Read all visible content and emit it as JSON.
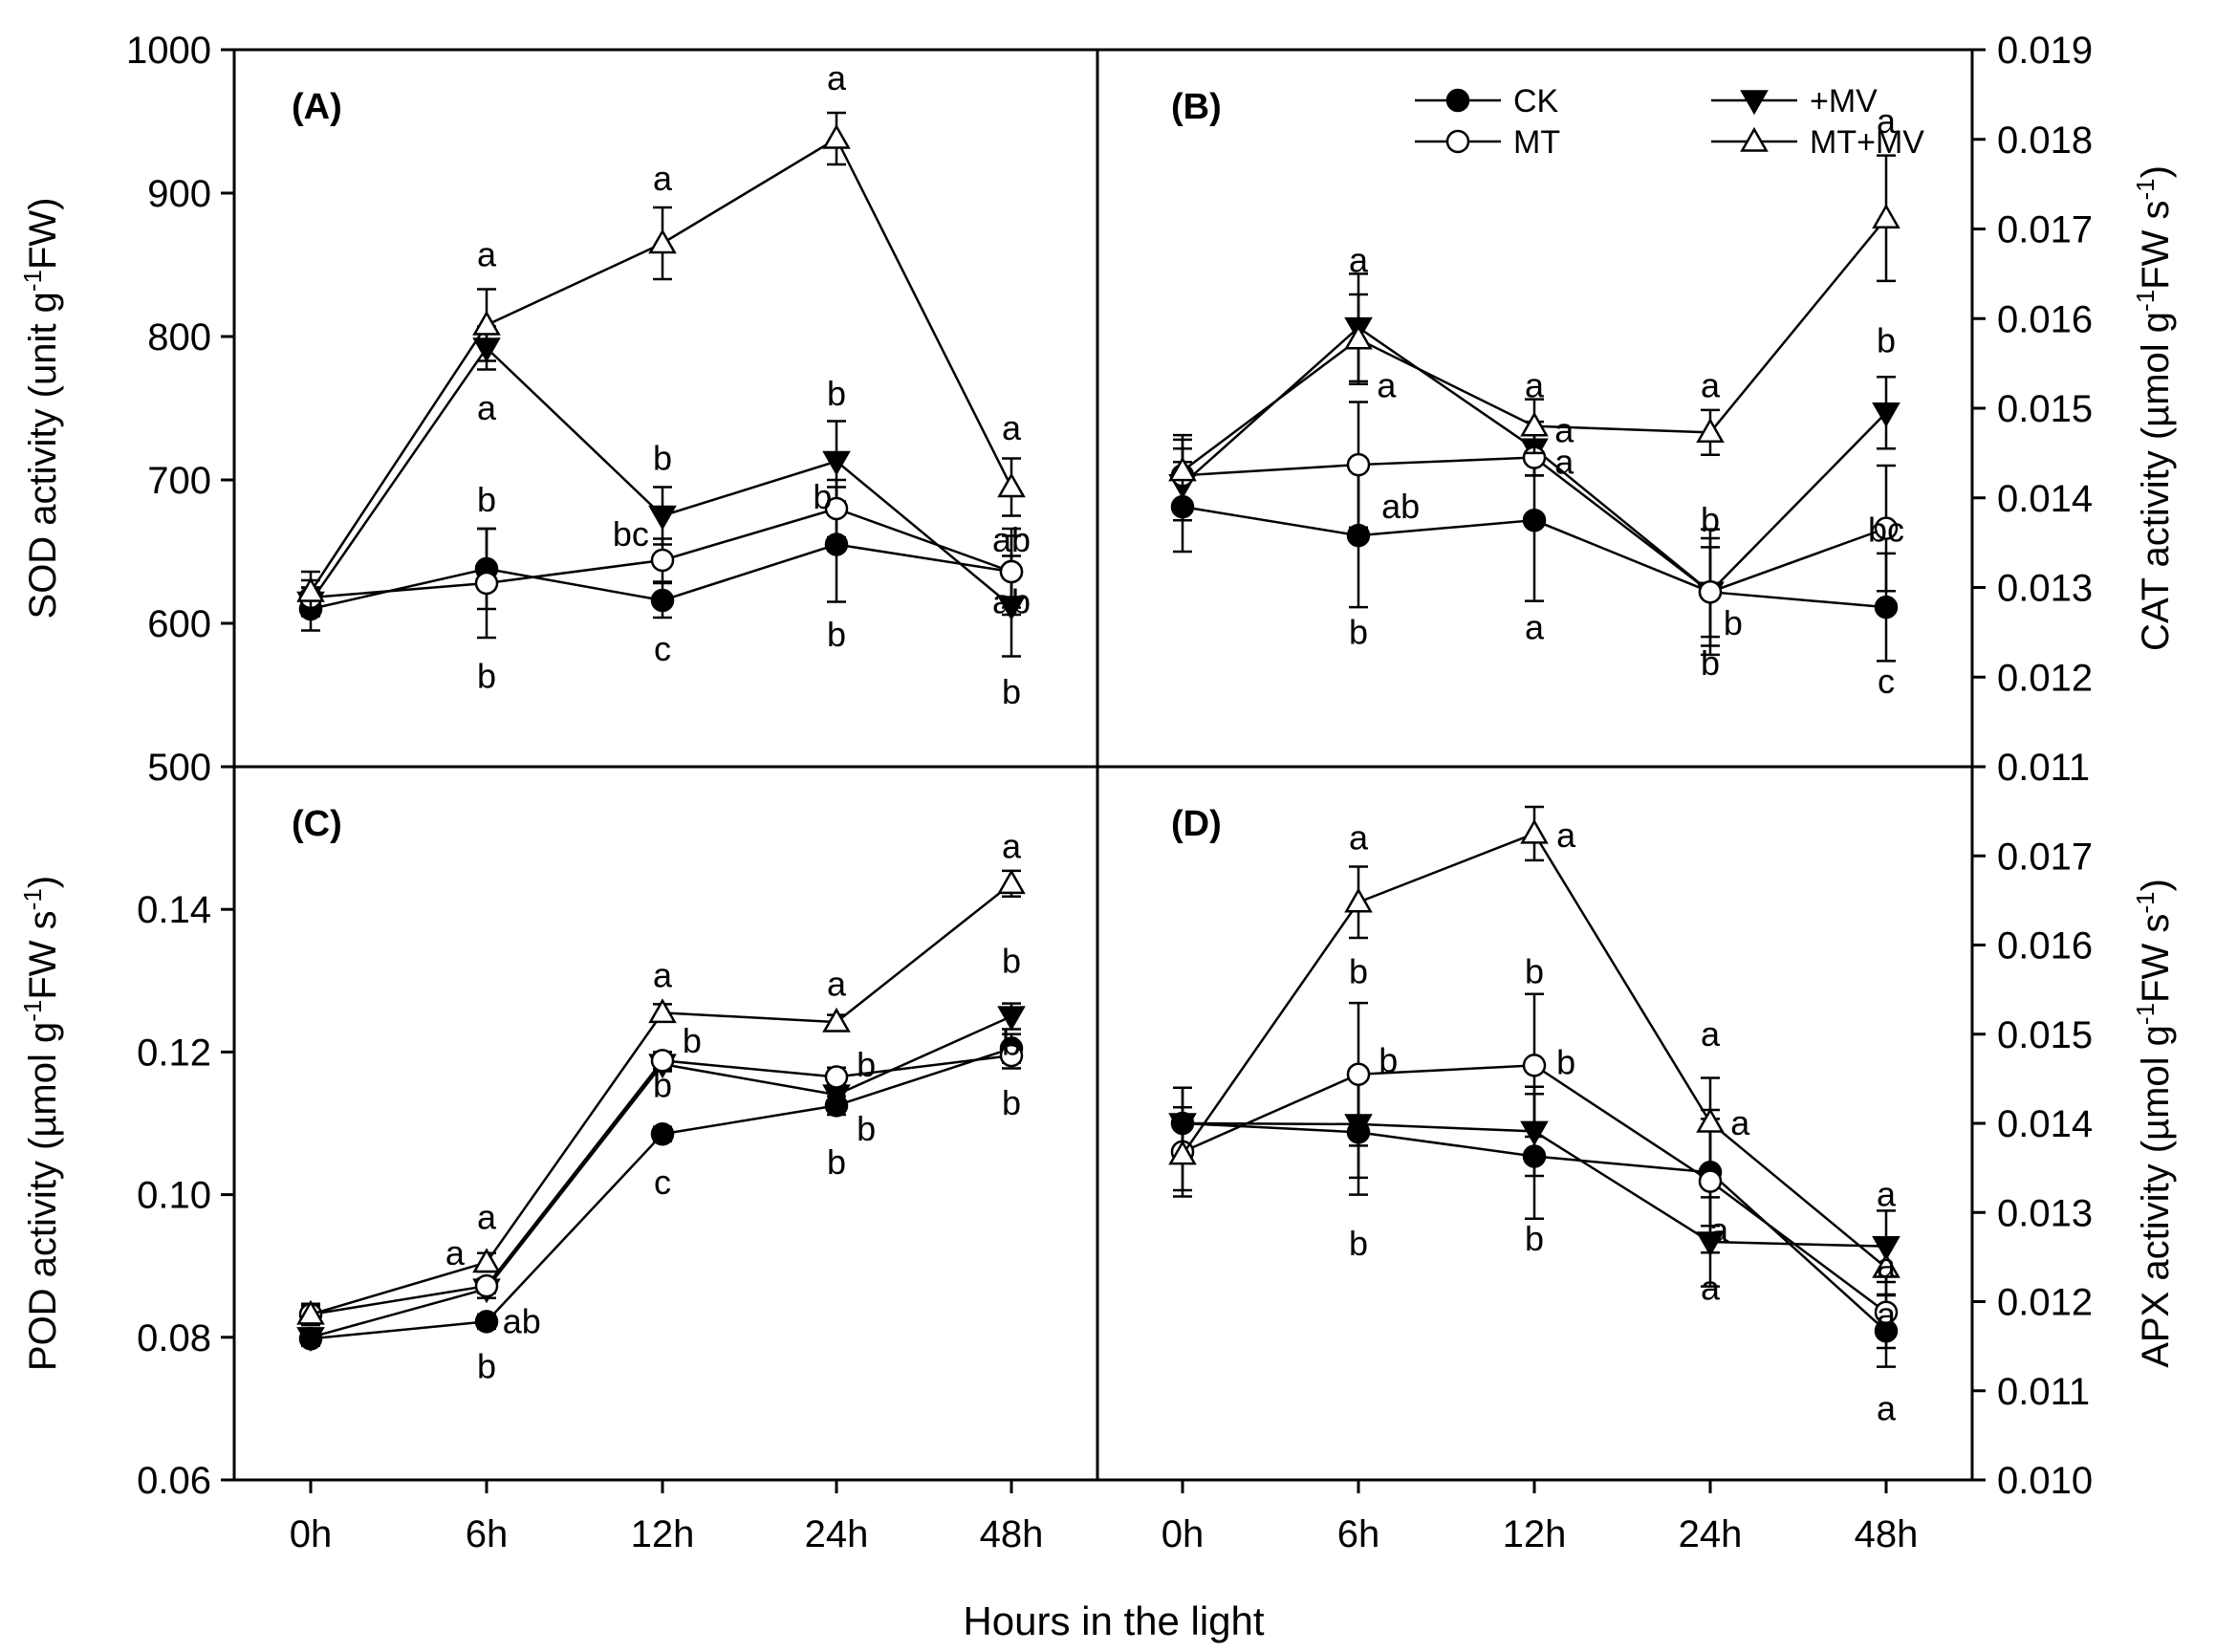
{
  "shared_x_label": "Hours in the light",
  "legend": {
    "entries": [
      {
        "name": "CK",
        "marker": "filled-circle"
      },
      {
        "name": "+MV",
        "marker": "filled-triangle-down"
      },
      {
        "name": "MT",
        "marker": "open-circle"
      },
      {
        "name": "MT+MV",
        "marker": "open-triangle-up"
      }
    ]
  },
  "chart_data": [
    {
      "panel": "(A)",
      "type": "line",
      "ylabel": "SOD activity (unit g-1FW)",
      "ylabel_base": "SOD activity (unit g",
      "ylabel_sup": "-1",
      "ylabel_tail": "FW)",
      "axis_side": "left",
      "categories": [
        "0h",
        "6h",
        "12h",
        "24h",
        "48h"
      ],
      "ylim": [
        500,
        1000
      ],
      "yticks": [
        "500",
        "600",
        "700",
        "800",
        "900",
        "1000"
      ],
      "ytick_values": [
        500,
        600,
        700,
        800,
        900,
        1000
      ],
      "series": [
        {
          "name": "CK",
          "values": [
            610,
            638,
            616,
            655,
            636
          ],
          "errors": [
            15,
            28,
            12,
            40,
            30
          ]
        },
        {
          "name": "+MV",
          "values": [
            615,
            792,
            675,
            713,
            612
          ],
          "errors": [
            10,
            15,
            20,
            28,
            35
          ]
        },
        {
          "name": "MT",
          "values": [
            618,
            628,
            644,
            680,
            636
          ],
          "errors": [
            12,
            38,
            15,
            20,
            25
          ]
        },
        {
          "name": "MT+MV",
          "values": [
            622,
            808,
            865,
            938,
            695
          ],
          "errors": [
            14,
            25,
            25,
            18,
            20
          ]
        }
      ],
      "annotations": [
        {
          "text": "a",
          "x": 1,
          "y": 857
        },
        {
          "text": "a",
          "x": 1,
          "y": 750
        },
        {
          "text": "b",
          "x": 1,
          "y": 686
        },
        {
          "text": "b",
          "x": 1,
          "y": 563
        },
        {
          "text": "a",
          "x": 2,
          "y": 910
        },
        {
          "text": "b",
          "x": 2,
          "y": 715
        },
        {
          "text": "bc",
          "x": 1.82,
          "y": 662
        },
        {
          "text": "c",
          "x": 2,
          "y": 582
        },
        {
          "text": "a",
          "x": 3,
          "y": 980
        },
        {
          "text": "b",
          "x": 3,
          "y": 760
        },
        {
          "text": "b",
          "x": 2.92,
          "y": 688
        },
        {
          "text": "b",
          "x": 3,
          "y": 592
        },
        {
          "text": "a",
          "x": 4,
          "y": 736
        },
        {
          "text": "ab",
          "x": 4.2,
          "y": 658
        },
        {
          "text": "ab",
          "x": 4.2,
          "y": 615
        },
        {
          "text": "b",
          "x": 4,
          "y": 552
        }
      ]
    },
    {
      "panel": "(B)",
      "type": "line",
      "ylabel": "CAT activity (µmol g-1FW s-1)",
      "ylabel_base": "CAT activity (µmol g",
      "ylabel_sup": "-1",
      "ylabel_mid": "FW s",
      "ylabel_sup2": "-1",
      "ylabel_tail": ")",
      "axis_side": "right",
      "categories": [
        "0h",
        "6h",
        "12h",
        "24h",
        "48h"
      ],
      "ylim": [
        0.011,
        0.019
      ],
      "yticks": [
        "0.011",
        "0.012",
        "0.013",
        "0.014",
        "0.015",
        "0.016",
        "0.017",
        "0.018",
        "0.019"
      ],
      "ytick_values": [
        0.011,
        0.012,
        0.013,
        0.014,
        0.015,
        0.016,
        0.017,
        0.018,
        0.019
      ],
      "series": [
        {
          "name": "CK",
          "values": [
            0.0139,
            0.01358,
            0.01375,
            0.01295,
            0.01278
          ],
          "errors": [
            0.0005,
            0.0008,
            0.0009,
            0.0005,
            0.0006
          ]
        },
        {
          "name": "+MV",
          "values": [
            0.01415,
            0.0159,
            0.01455,
            0.01295,
            0.01495
          ],
          "errors": [
            0.0004,
            0.0006,
            0.0003,
            0.0006,
            0.0004
          ]
        },
        {
          "name": "MT",
          "values": [
            0.01425,
            0.01437,
            0.01445,
            0.01295,
            0.01366
          ],
          "errors": [
            0.0004,
            0.0007,
            0.0002,
            0.0007,
            0.0007
          ]
        },
        {
          "name": "MT+MV",
          "values": [
            0.0143,
            0.01577,
            0.0148,
            0.01473,
            0.01712
          ],
          "errors": [
            0.0004,
            0.0005,
            0.0003,
            0.00025,
            0.0007
          ]
        }
      ],
      "annotations": [
        {
          "text": "a",
          "x": 6,
          "y": 0.01665
        },
        {
          "text": "a",
          "x": 6.16,
          "y": 0.01525
        },
        {
          "text": "ab",
          "x": 6.24,
          "y": 0.0139
        },
        {
          "text": "b",
          "x": 6,
          "y": 0.0125
        },
        {
          "text": "a",
          "x": 7,
          "y": 0.01525
        },
        {
          "text": "a",
          "x": 7.17,
          "y": 0.01475
        },
        {
          "text": "a",
          "x": 7.17,
          "y": 0.0144
        },
        {
          "text": "a",
          "x": 7,
          "y": 0.01255
        },
        {
          "text": "a",
          "x": 8,
          "y": 0.01525
        },
        {
          "text": "b",
          "x": 8,
          "y": 0.01375
        },
        {
          "text": "b",
          "x": 8.13,
          "y": 0.0126
        },
        {
          "text": "b",
          "x": 8,
          "y": 0.01215
        },
        {
          "text": "a",
          "x": 9,
          "y": 0.0182
        },
        {
          "text": "b",
          "x": 9,
          "y": 0.01575
        },
        {
          "text": "bc",
          "x": 9.23,
          "y": 0.01364
        },
        {
          "text": "c",
          "x": 9,
          "y": 0.01195
        }
      ]
    },
    {
      "panel": "(C)",
      "type": "line",
      "ylabel": "POD activity (µmol g-1FW s-1)",
      "ylabel_base": "POD activity (µmol g",
      "ylabel_sup": "-1",
      "ylabel_mid": "FW s",
      "ylabel_sup2": "-1",
      "ylabel_tail": ")",
      "axis_side": "left",
      "categories": [
        "0h",
        "6h",
        "12h",
        "24h",
        "48h"
      ],
      "ylim": [
        0.06,
        0.16
      ],
      "yticks": [
        "0.06",
        "0.08",
        "0.10",
        "0.12",
        "0.14"
      ],
      "ytick_values": [
        0.06,
        0.08,
        0.1,
        0.12,
        0.14
      ],
      "series": [
        {
          "name": "CK",
          "values": [
            0.0798,
            0.0822,
            0.1085,
            0.1125,
            0.1205
          ],
          "errors": [
            0.001,
            0.001,
            0.001,
            0.0013,
            0.002
          ]
        },
        {
          "name": "+MV",
          "values": [
            0.08,
            0.0868,
            0.1183,
            0.114,
            0.125
          ],
          "errors": [
            0.001,
            0.0013,
            0.001,
            0.0015,
            0.0018
          ]
        },
        {
          "name": "MT",
          "values": [
            0.0832,
            0.0872,
            0.1188,
            0.1165,
            0.1195
          ],
          "errors": [
            0.0012,
            0.001,
            0.0012,
            0.0013,
            0.0018
          ]
        },
        {
          "name": "MT+MV",
          "values": [
            0.0832,
            0.0905,
            0.1255,
            0.1242,
            0.1436
          ],
          "errors": [
            0.0015,
            0.0013,
            0.0012,
            0.001,
            0.0018
          ]
        }
      ],
      "annotations": [
        {
          "text": "a",
          "x": 1,
          "y": 0.0968
        },
        {
          "text": "a",
          "x": 0.82,
          "y": 0.0918
        },
        {
          "text": "ab",
          "x": 1.2,
          "y": 0.0822
        },
        {
          "text": "b",
          "x": 1,
          "y": 0.0759
        },
        {
          "text": "a",
          "x": 2,
          "y": 0.1307
        },
        {
          "text": "b",
          "x": 2.17,
          "y": 0.1215
        },
        {
          "text": "b",
          "x": 2,
          "y": 0.1153
        },
        {
          "text": "c",
          "x": 2,
          "y": 0.1017
        },
        {
          "text": "a",
          "x": 3,
          "y": 0.1295
        },
        {
          "text": "b",
          "x": 3.17,
          "y": 0.1182
        },
        {
          "text": "b",
          "x": 3.17,
          "y": 0.1092
        },
        {
          "text": "b",
          "x": 3,
          "y": 0.1045
        },
        {
          "text": "a",
          "x": 4,
          "y": 0.1488
        },
        {
          "text": "b",
          "x": 4,
          "y": 0.1327
        },
        {
          "text": "b",
          "x": 4.16,
          "y": 0.1212
        },
        {
          "text": "b",
          "x": 4,
          "y": 0.1128
        }
      ]
    },
    {
      "panel": "(D)",
      "type": "line",
      "ylabel": "APX activity (µmol g-1FW s-1)",
      "ylabel_base": "APX activity (µmol g",
      "ylabel_sup": "-1",
      "ylabel_mid": "FW s",
      "ylabel_sup2": "-1",
      "ylabel_tail": ")",
      "axis_side": "right",
      "categories": [
        "0h",
        "6h",
        "12h",
        "24h",
        "48h"
      ],
      "ylim": [
        0.01,
        0.018
      ],
      "yticks": [
        "0.010",
        "0.011",
        "0.012",
        "0.013",
        "0.014",
        "0.015",
        "0.016",
        "0.017"
      ],
      "ytick_values": [
        0.01,
        0.011,
        0.012,
        0.013,
        0.014,
        0.015,
        0.016,
        0.017
      ],
      "series": [
        {
          "name": "CK",
          "values": [
            0.014,
            0.0139,
            0.01363,
            0.01345,
            0.01167
          ],
          "errors": [
            0.0004,
            0.0007,
            0.0007,
            0.0006,
            0.0004
          ]
        },
        {
          "name": "+MV",
          "values": [
            0.014,
            0.01399,
            0.01391,
            0.01267,
            0.01262
          ],
          "errors": [
            0.0004,
            0.0006,
            0.0005,
            0.0005,
            0.0004
          ]
        },
        {
          "name": "MT",
          "values": [
            0.01368,
            0.01455,
            0.01465,
            0.01335,
            0.01188
          ],
          "errors": [
            0.0005,
            0.0008,
            0.0008,
            0.0008,
            0.0004
          ]
        },
        {
          "name": "MT+MV",
          "values": [
            0.01365,
            0.01648,
            0.01725,
            0.01401,
            0.01238
          ],
          "errors": [
            0.0004,
            0.0004,
            0.0003,
            0.0005,
            0.0003
          ]
        }
      ],
      "annotations": [
        {
          "text": "a",
          "x": 6,
          "y": 0.0172
        },
        {
          "text": "b",
          "x": 6,
          "y": 0.0157
        },
        {
          "text": "b",
          "x": 6.17,
          "y": 0.0147
        },
        {
          "text": "b",
          "x": 6,
          "y": 0.01265
        },
        {
          "text": "a",
          "x": 7.18,
          "y": 0.01723
        },
        {
          "text": "b",
          "x": 7,
          "y": 0.0157
        },
        {
          "text": "b",
          "x": 7.18,
          "y": 0.01468
        },
        {
          "text": "b",
          "x": 7,
          "y": 0.0127
        },
        {
          "text": "a",
          "x": 8,
          "y": 0.015
        },
        {
          "text": "a",
          "x": 8.17,
          "y": 0.014
        },
        {
          "text": "a",
          "x": 8.05,
          "y": 0.0128
        },
        {
          "text": "a",
          "x": 8,
          "y": 0.01215
        },
        {
          "text": "a",
          "x": 9,
          "y": 0.0132
        },
        {
          "text": "a",
          "x": 9.18,
          "y": 0.0124
        },
        {
          "text": "a",
          "x": 9.18,
          "y": 0.01185
        },
        {
          "text": "a",
          "x": 9,
          "y": 0.0108
        }
      ]
    }
  ]
}
